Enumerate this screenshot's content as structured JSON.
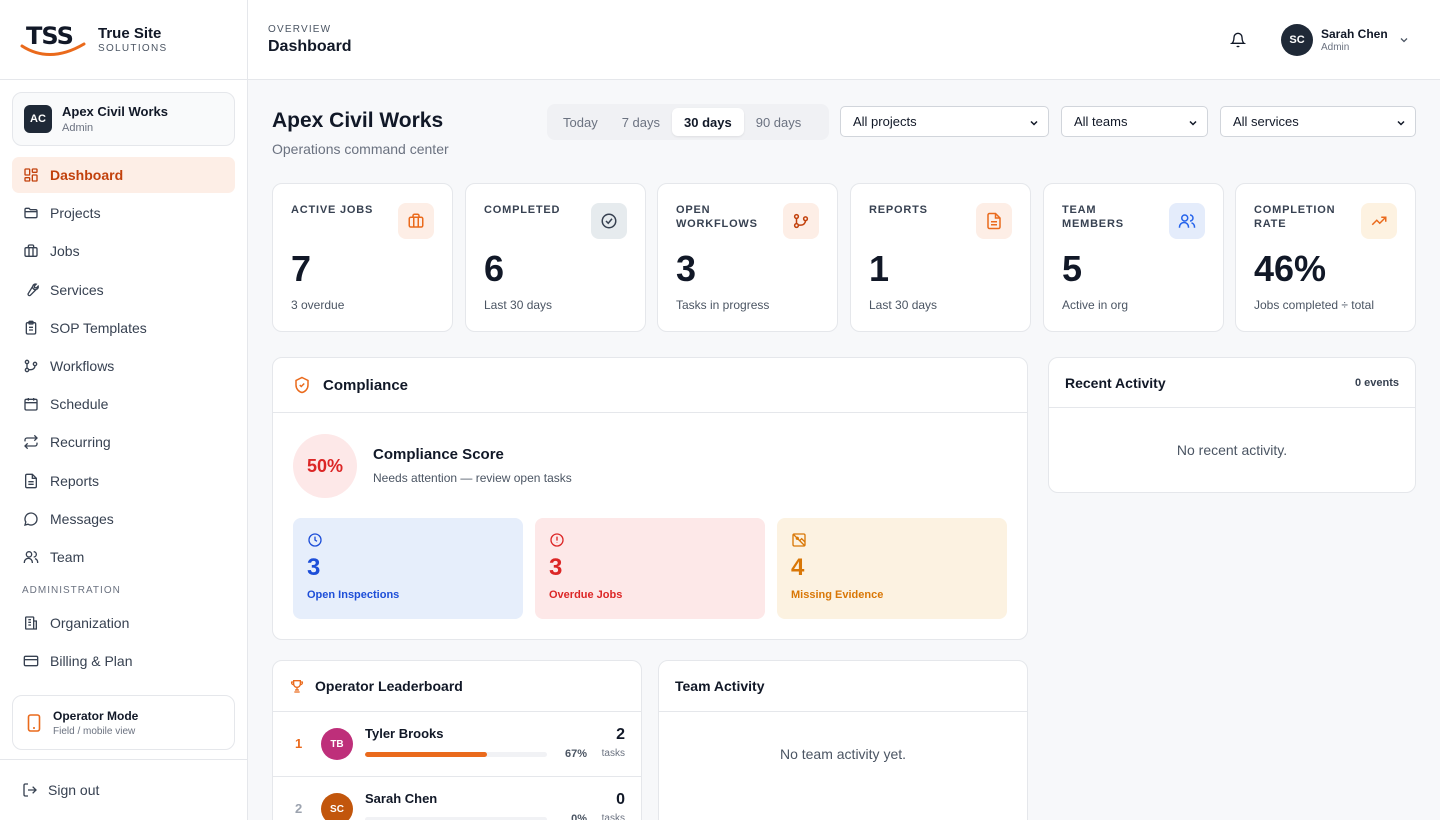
{
  "brand": {
    "logo_text": "TSS",
    "name_line1": "True Site",
    "name_line2": "SOLUTIONS",
    "accent": "#ea6a1c"
  },
  "org_switcher": {
    "initials": "AC",
    "name": "Apex Civil Works",
    "role": "Admin"
  },
  "nav": {
    "items": [
      {
        "label": "Dashboard",
        "icon": "dashboard-icon",
        "active": true
      },
      {
        "label": "Projects",
        "icon": "folder-icon"
      },
      {
        "label": "Jobs",
        "icon": "briefcase-icon"
      },
      {
        "label": "Services",
        "icon": "wrench-icon"
      },
      {
        "label": "SOP Templates",
        "icon": "clipboard-icon"
      },
      {
        "label": "Workflows",
        "icon": "workflow-icon"
      },
      {
        "label": "Schedule",
        "icon": "calendar-icon"
      },
      {
        "label": "Recurring",
        "icon": "repeat-icon"
      },
      {
        "label": "Reports",
        "icon": "file-text-icon"
      },
      {
        "label": "Messages",
        "icon": "message-icon"
      },
      {
        "label": "Team",
        "icon": "users-icon"
      }
    ],
    "admin_section": "ADMINISTRATION",
    "admin_items": [
      {
        "label": "Organization",
        "icon": "building-icon"
      },
      {
        "label": "Billing & Plan",
        "icon": "credit-card-icon"
      }
    ]
  },
  "operator_mode": {
    "title": "Operator Mode",
    "subtitle": "Field / mobile view"
  },
  "signout": {
    "label": "Sign out"
  },
  "topbar": {
    "breadcrumb": "OVERVIEW",
    "title": "Dashboard"
  },
  "user": {
    "initials": "SC",
    "name": "Sarah Chen",
    "role": "Admin"
  },
  "header": {
    "org_title": "Apex Civil Works",
    "subtitle": "Operations command center"
  },
  "range": {
    "options": [
      "Today",
      "7 days",
      "30 days",
      "90 days"
    ],
    "selected": "30 days"
  },
  "filters": {
    "projects": "All projects",
    "teams": "All teams",
    "services": "All services"
  },
  "stats": [
    {
      "label": "ACTIVE JOBS",
      "value": "7",
      "sub": "3 overdue",
      "icon": "briefcase-icon",
      "icon_bg": "#fdeee6",
      "icon_color": "#ea6a1c"
    },
    {
      "label": "COMPLETED",
      "value": "6",
      "sub": "Last 30 days",
      "icon": "check-circle-icon",
      "icon_bg": "#e6ebee",
      "icon_color": "#374151"
    },
    {
      "label": "OPEN WORKFLOWS",
      "value": "3",
      "sub": "Tasks in progress",
      "icon": "workflow-icon",
      "icon_bg": "#fdeee6",
      "icon_color": "#c2410c"
    },
    {
      "label": "REPORTS",
      "value": "1",
      "sub": "Last 30 days",
      "icon": "file-text-icon",
      "icon_bg": "#fdeee6",
      "icon_color": "#ea6a1c"
    },
    {
      "label": "TEAM MEMBERS",
      "value": "5",
      "sub": "Active in org",
      "icon": "users-icon",
      "icon_bg": "#e4ecfb",
      "icon_color": "#2563eb"
    },
    {
      "label": "COMPLETION RATE",
      "value": "46%",
      "sub": "Jobs completed ÷ total",
      "icon": "trending-up-icon",
      "icon_bg": "#fdf2e1",
      "icon_color": "#ea6a1c"
    }
  ],
  "compliance": {
    "title": "Compliance",
    "score": "50%",
    "score_title": "Compliance Score",
    "score_sub": "Needs attention — review open tasks",
    "tiles": [
      {
        "value": "3",
        "label": "Open Inspections",
        "icon": "clock-icon",
        "bg": "#e6eefb",
        "color": "#1d4ed8"
      },
      {
        "value": "3",
        "label": "Overdue Jobs",
        "icon": "alert-circle-icon",
        "bg": "#fde8e8",
        "color": "#dc2626"
      },
      {
        "value": "4",
        "label": "Missing Evidence",
        "icon": "image-off-icon",
        "bg": "#fcf2e1",
        "color": "#d97706"
      }
    ]
  },
  "recent_activity": {
    "title": "Recent Activity",
    "count": "0 events",
    "empty": "No recent activity."
  },
  "leaderboard": {
    "title": "Operator Leaderboard",
    "rows": [
      {
        "rank": "1",
        "initials": "TB",
        "name": "Tyler Brooks",
        "pct": "67%",
        "progress": 0.67,
        "count": "2",
        "unit": "tasks",
        "avatar_color": "#be2f7a",
        "rank_color": "#ea6a1c"
      },
      {
        "rank": "2",
        "initials": "SC",
        "name": "Sarah Chen",
        "pct": "0%",
        "progress": 0,
        "count": "0",
        "unit": "tasks",
        "avatar_color": "#c2560c",
        "rank_color": "#9ca3af"
      }
    ]
  },
  "team_activity": {
    "title": "Team Activity",
    "empty": "No team activity yet."
  }
}
